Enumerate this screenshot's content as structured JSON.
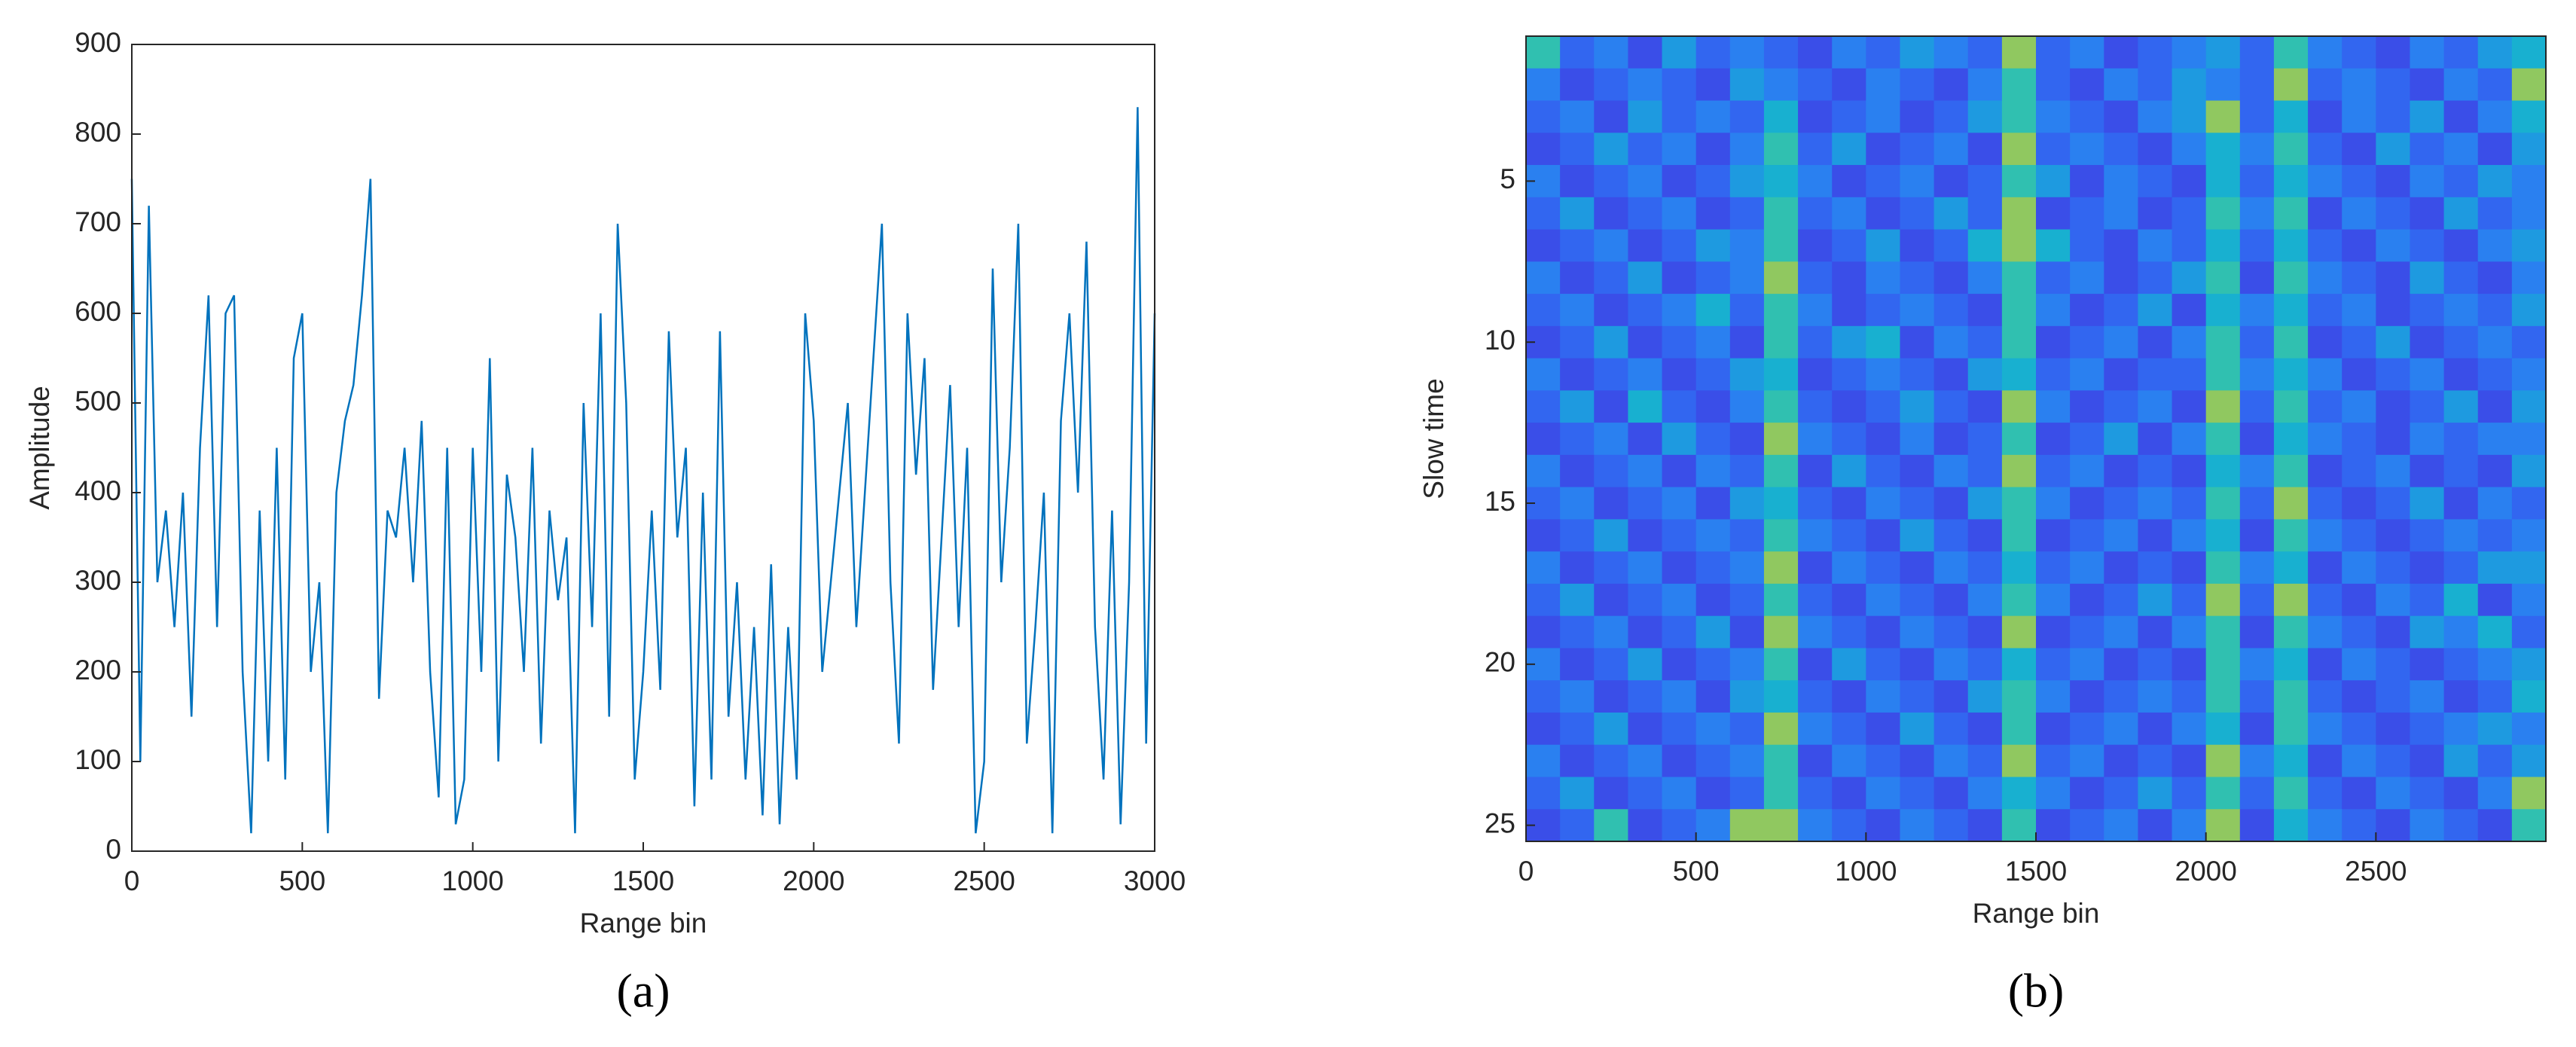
{
  "chart_data": [
    {
      "type": "line",
      "caption": "(a)",
      "xlabel": "Range bin",
      "ylabel": "Amplitude",
      "xlim": [
        0,
        3000
      ],
      "xticks": [
        0,
        500,
        1000,
        1500,
        2000,
        2500,
        3000
      ],
      "ylim": [
        0,
        900
      ],
      "yticks": [
        0,
        100,
        200,
        300,
        400,
        500,
        600,
        700,
        800,
        900
      ],
      "x": [
        0,
        25,
        50,
        75,
        100,
        125,
        150,
        175,
        200,
        225,
        250,
        275,
        300,
        325,
        350,
        375,
        400,
        425,
        450,
        475,
        500,
        525,
        550,
        575,
        600,
        625,
        650,
        675,
        700,
        725,
        750,
        775,
        800,
        825,
        850,
        875,
        900,
        925,
        950,
        975,
        1000,
        1025,
        1050,
        1075,
        1100,
        1125,
        1150,
        1175,
        1200,
        1225,
        1250,
        1275,
        1300,
        1325,
        1350,
        1375,
        1400,
        1425,
        1450,
        1475,
        1500,
        1525,
        1550,
        1575,
        1600,
        1625,
        1650,
        1675,
        1700,
        1725,
        1750,
        1775,
        1800,
        1825,
        1850,
        1875,
        1900,
        1925,
        1950,
        1975,
        2000,
        2025,
        2050,
        2075,
        2100,
        2125,
        2150,
        2175,
        2200,
        2225,
        2250,
        2275,
        2300,
        2325,
        2350,
        2375,
        2400,
        2425,
        2450,
        2475,
        2500,
        2525,
        2550,
        2575,
        2600,
        2625,
        2650,
        2675,
        2700,
        2725,
        2750,
        2775,
        2800,
        2825,
        2850,
        2875,
        2900,
        2925,
        2950,
        2975,
        3000
      ],
      "series": [
        {
          "color": "#0072bd",
          "values": [
            750,
            100,
            720,
            300,
            380,
            250,
            400,
            150,
            450,
            620,
            250,
            600,
            620,
            200,
            20,
            380,
            100,
            450,
            80,
            550,
            600,
            200,
            300,
            20,
            400,
            480,
            520,
            620,
            750,
            170,
            380,
            350,
            450,
            300,
            480,
            200,
            60,
            450,
            30,
            80,
            450,
            200,
            550,
            100,
            420,
            350,
            200,
            450,
            120,
            380,
            280,
            350,
            20,
            500,
            250,
            600,
            150,
            700,
            500,
            80,
            200,
            380,
            180,
            580,
            350,
            450,
            50,
            400,
            80,
            580,
            150,
            300,
            80,
            250,
            40,
            320,
            30,
            250,
            80,
            600,
            480,
            200,
            300,
            400,
            500,
            250,
            400,
            550,
            700,
            300,
            120,
            600,
            420,
            550,
            180,
            350,
            520,
            250,
            450,
            20,
            100,
            650,
            300,
            450,
            700,
            120,
            250,
            400,
            20,
            480,
            600,
            400,
            680,
            250,
            80,
            380,
            30,
            300,
            830,
            120,
            600
          ]
        }
      ]
    },
    {
      "type": "heatmap",
      "caption": "(b)",
      "xlabel": "Range bin",
      "ylabel": "Slow time",
      "xlim": [
        0,
        3000
      ],
      "xticks": [
        0,
        500,
        1000,
        1500,
        2000,
        2500
      ],
      "ylim": [
        0.5,
        25.5
      ],
      "yticks": [
        5,
        10,
        15,
        20,
        25
      ],
      "zlim": [
        0,
        9
      ],
      "colorscale": [
        "#2a2ab8",
        "#3436d8",
        "#3a4ee8",
        "#3266f0",
        "#2a80f0",
        "#1e9ae0",
        "#18b0d0",
        "#30c0b0",
        "#90c860",
        "#e8d030"
      ],
      "x": [
        50,
        150,
        250,
        350,
        450,
        550,
        650,
        750,
        850,
        950,
        1050,
        1150,
        1250,
        1350,
        1450,
        1550,
        1650,
        1750,
        1850,
        1950,
        2050,
        2150,
        2250,
        2350,
        2450,
        2550,
        2650,
        2750,
        2850,
        2950
      ],
      "y": [
        1,
        2,
        3,
        4,
        5,
        6,
        7,
        8,
        9,
        10,
        11,
        12,
        13,
        14,
        15,
        16,
        17,
        18,
        19,
        20,
        21,
        22,
        23,
        24,
        25
      ],
      "z": [
        [
          7,
          3,
          4,
          2,
          5,
          3,
          4,
          3,
          2,
          4,
          3,
          5,
          4,
          3,
          8,
          3,
          4,
          2,
          3,
          4,
          5,
          3,
          7,
          4,
          3,
          2,
          4,
          3,
          5,
          6
        ],
        [
          4,
          2,
          3,
          4,
          3,
          2,
          5,
          4,
          3,
          2,
          4,
          3,
          2,
          4,
          7,
          3,
          2,
          4,
          3,
          5,
          4,
          3,
          8,
          3,
          4,
          3,
          2,
          4,
          3,
          8
        ],
        [
          3,
          4,
          2,
          5,
          3,
          4,
          3,
          6,
          2,
          3,
          4,
          2,
          3,
          5,
          7,
          4,
          3,
          2,
          4,
          5,
          8,
          3,
          6,
          2,
          4,
          3,
          5,
          2,
          4,
          6
        ],
        [
          2,
          3,
          5,
          3,
          4,
          2,
          4,
          7,
          3,
          5,
          2,
          3,
          4,
          2,
          8,
          3,
          4,
          3,
          2,
          4,
          6,
          4,
          7,
          3,
          2,
          5,
          3,
          4,
          2,
          5
        ],
        [
          4,
          2,
          3,
          4,
          2,
          3,
          5,
          6,
          4,
          2,
          3,
          4,
          2,
          3,
          7,
          5,
          2,
          4,
          3,
          2,
          6,
          3,
          6,
          4,
          3,
          2,
          4,
          3,
          5,
          4
        ],
        [
          3,
          5,
          2,
          3,
          4,
          2,
          3,
          7,
          3,
          4,
          2,
          3,
          5,
          3,
          8,
          2,
          3,
          4,
          2,
          3,
          7,
          4,
          7,
          2,
          4,
          3,
          2,
          5,
          3,
          4
        ],
        [
          2,
          3,
          4,
          2,
          3,
          5,
          4,
          7,
          2,
          3,
          5,
          2,
          3,
          6,
          8,
          6,
          3,
          2,
          4,
          3,
          6,
          3,
          6,
          3,
          2,
          4,
          3,
          2,
          4,
          5
        ],
        [
          4,
          2,
          3,
          5,
          2,
          3,
          4,
          8,
          3,
          2,
          4,
          3,
          2,
          4,
          7,
          3,
          4,
          2,
          3,
          5,
          7,
          2,
          7,
          4,
          3,
          2,
          5,
          3,
          2,
          4
        ],
        [
          3,
          4,
          2,
          3,
          4,
          6,
          3,
          7,
          4,
          2,
          3,
          4,
          3,
          2,
          7,
          4,
          2,
          3,
          5,
          2,
          6,
          4,
          6,
          3,
          4,
          2,
          3,
          4,
          3,
          5
        ],
        [
          2,
          3,
          5,
          2,
          3,
          4,
          2,
          7,
          3,
          5,
          6,
          2,
          4,
          3,
          7,
          2,
          3,
          4,
          2,
          4,
          7,
          3,
          7,
          2,
          3,
          5,
          2,
          3,
          4,
          3
        ],
        [
          4,
          2,
          3,
          4,
          2,
          3,
          5,
          6,
          2,
          3,
          4,
          3,
          2,
          5,
          6,
          3,
          4,
          2,
          3,
          3,
          7,
          4,
          6,
          4,
          2,
          3,
          4,
          2,
          3,
          4
        ],
        [
          3,
          5,
          2,
          6,
          3,
          2,
          4,
          7,
          3,
          2,
          3,
          5,
          3,
          2,
          8,
          4,
          2,
          3,
          4,
          2,
          8,
          3,
          7,
          3,
          4,
          2,
          3,
          5,
          2,
          5
        ],
        [
          2,
          3,
          4,
          2,
          5,
          3,
          2,
          8,
          4,
          3,
          2,
          4,
          2,
          3,
          7,
          2,
          3,
          5,
          2,
          4,
          7,
          2,
          6,
          4,
          3,
          2,
          4,
          3,
          4,
          4
        ],
        [
          4,
          2,
          3,
          4,
          2,
          4,
          3,
          7,
          2,
          5,
          3,
          2,
          4,
          3,
          8,
          3,
          4,
          2,
          3,
          2,
          6,
          4,
          7,
          2,
          3,
          4,
          2,
          3,
          2,
          5
        ],
        [
          3,
          4,
          2,
          3,
          4,
          2,
          5,
          6,
          3,
          2,
          4,
          3,
          2,
          5,
          7,
          4,
          2,
          3,
          4,
          3,
          7,
          3,
          8,
          3,
          2,
          3,
          5,
          2,
          4,
          3
        ],
        [
          2,
          3,
          5,
          2,
          3,
          4,
          3,
          7,
          4,
          3,
          2,
          5,
          3,
          2,
          7,
          2,
          3,
          4,
          2,
          4,
          6,
          2,
          7,
          4,
          3,
          2,
          3,
          4,
          3,
          4
        ],
        [
          4,
          2,
          3,
          4,
          2,
          3,
          4,
          8,
          2,
          4,
          3,
          2,
          4,
          3,
          6,
          3,
          4,
          2,
          3,
          2,
          7,
          4,
          6,
          2,
          4,
          3,
          2,
          3,
          5,
          5
        ],
        [
          3,
          5,
          2,
          3,
          4,
          2,
          3,
          7,
          3,
          2,
          4,
          3,
          2,
          4,
          7,
          4,
          2,
          3,
          5,
          3,
          8,
          3,
          8,
          3,
          2,
          4,
          3,
          6,
          2,
          4
        ],
        [
          2,
          3,
          4,
          2,
          3,
          5,
          2,
          8,
          4,
          3,
          2,
          4,
          3,
          2,
          8,
          2,
          3,
          4,
          2,
          4,
          7,
          2,
          7,
          4,
          3,
          2,
          5,
          4,
          6,
          3
        ],
        [
          4,
          2,
          3,
          5,
          2,
          3,
          4,
          7,
          2,
          5,
          3,
          2,
          4,
          3,
          6,
          3,
          4,
          2,
          3,
          2,
          7,
          4,
          6,
          2,
          4,
          3,
          2,
          3,
          4,
          5
        ],
        [
          3,
          4,
          2,
          3,
          4,
          2,
          5,
          6,
          3,
          2,
          4,
          3,
          2,
          5,
          7,
          4,
          2,
          3,
          4,
          3,
          7,
          3,
          7,
          3,
          2,
          3,
          4,
          2,
          3,
          6
        ],
        [
          2,
          3,
          5,
          2,
          3,
          4,
          3,
          8,
          4,
          3,
          2,
          5,
          3,
          2,
          7,
          2,
          3,
          4,
          2,
          4,
          6,
          2,
          7,
          4,
          3,
          2,
          3,
          4,
          5,
          4
        ],
        [
          4,
          2,
          3,
          4,
          2,
          3,
          4,
          7,
          2,
          4,
          3,
          2,
          4,
          3,
          8,
          3,
          4,
          2,
          3,
          2,
          8,
          4,
          6,
          2,
          4,
          3,
          2,
          5,
          3,
          5
        ],
        [
          3,
          5,
          2,
          3,
          4,
          2,
          3,
          7,
          3,
          2,
          4,
          3,
          2,
          4,
          6,
          4,
          2,
          3,
          5,
          3,
          7,
          3,
          7,
          3,
          2,
          4,
          3,
          2,
          4,
          8
        ],
        [
          2,
          3,
          7,
          2,
          3,
          4,
          8,
          8,
          4,
          3,
          2,
          4,
          3,
          2,
          7,
          2,
          3,
          4,
          2,
          4,
          8,
          2,
          6,
          4,
          3,
          2,
          4,
          3,
          2,
          7
        ]
      ]
    }
  ]
}
